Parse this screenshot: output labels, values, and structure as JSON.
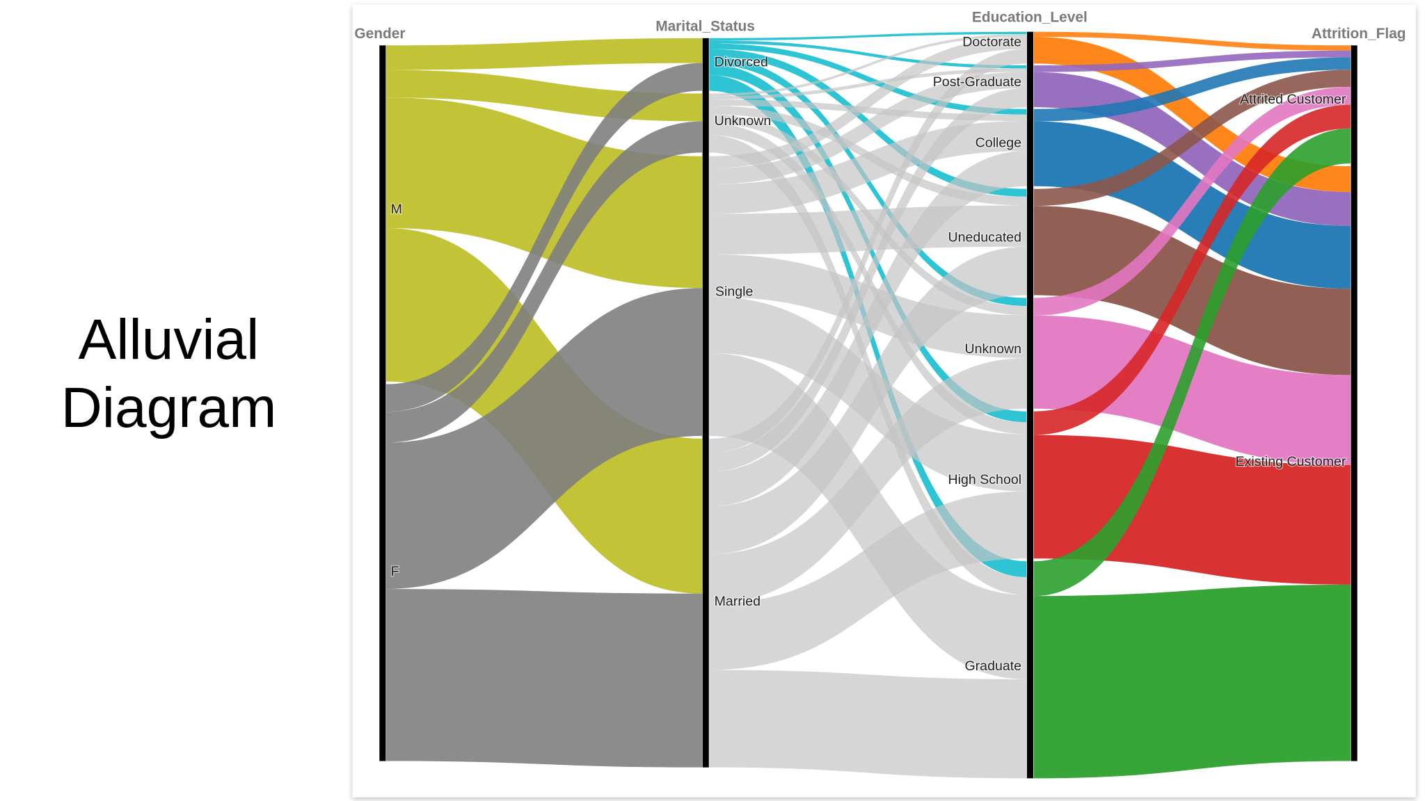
{
  "slide": {
    "title": "Alluvial Diagram"
  },
  "diagram": {
    "axes": [
      {
        "title": "Gender",
        "nodes": [
          "M",
          "F"
        ]
      },
      {
        "title": "Marital_Status",
        "nodes": [
          "Divorced",
          "Unknown",
          "Single",
          "Married"
        ]
      },
      {
        "title": "Education_Level",
        "nodes": [
          "Doctorate",
          "Post-Graduate",
          "College",
          "Uneducated",
          "Unknown",
          "High School",
          "Graduate"
        ]
      },
      {
        "title": "Attrition_Flag",
        "nodes": [
          "Attrited Customer",
          "Existing Customer"
        ]
      }
    ]
  }
}
